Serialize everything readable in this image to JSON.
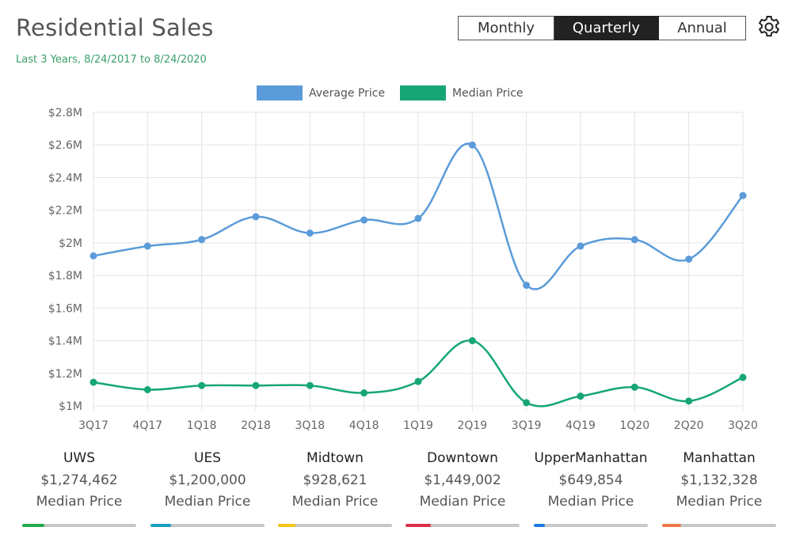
{
  "header": {
    "title": "Residential Sales",
    "subtitle": "Last 3 Years, 8/24/2017 to 8/24/2020",
    "periods": [
      "Monthly",
      "Quarterly",
      "Annual"
    ],
    "active_period": "Quarterly",
    "settings_icon": "gear-icon"
  },
  "chart_data": {
    "type": "line",
    "categories": [
      "3Q17",
      "4Q17",
      "1Q18",
      "2Q18",
      "3Q18",
      "4Q18",
      "1Q19",
      "2Q19",
      "3Q19",
      "4Q19",
      "1Q20",
      "2Q20",
      "3Q20"
    ],
    "series": [
      {
        "name": "Average Price",
        "color": "#5b9bd9",
        "values": [
          1920000,
          1980000,
          2020000,
          2160000,
          2060000,
          2140000,
          2150000,
          2600000,
          1740000,
          1980000,
          2020000,
          1900000,
          2290000
        ]
      },
      {
        "name": "Median Price",
        "color": "#16a676",
        "values": [
          1145000,
          1100000,
          1125000,
          1125000,
          1125000,
          1080000,
          1150000,
          1400000,
          1020000,
          1060000,
          1115000,
          1030000,
          1175000
        ]
      }
    ],
    "ylim": [
      1000000,
      2800000
    ],
    "yticks": [
      "$1M",
      "$1.2M",
      "$1.4M",
      "$1.6M",
      "$1.8M",
      "$2M",
      "$2.2M",
      "$2.4M",
      "$2.6M",
      "$2.8M"
    ],
    "grid": true,
    "legend": "top-center"
  },
  "stats": [
    {
      "name": "UWS",
      "value": "$1,274,462",
      "label": "Median Price",
      "color": "#22a84a"
    },
    {
      "name": "UES",
      "value": "$1,200,000",
      "label": "Median Price",
      "color": "#1a9fbf"
    },
    {
      "name": "Midtown",
      "value": "$928,621",
      "label": "Median Price",
      "color": "#f5c518"
    },
    {
      "name": "Downtown",
      "value": "$1,449,002",
      "label": "Median Price",
      "color": "#d93048"
    },
    {
      "name": "UpperManhattan",
      "value": "$649,854",
      "label": "Median Price",
      "color": "#1f7ae0"
    },
    {
      "name": "Manhattan",
      "value": "$1,132,328",
      "label": "Median Price",
      "color": "#f07845"
    }
  ]
}
